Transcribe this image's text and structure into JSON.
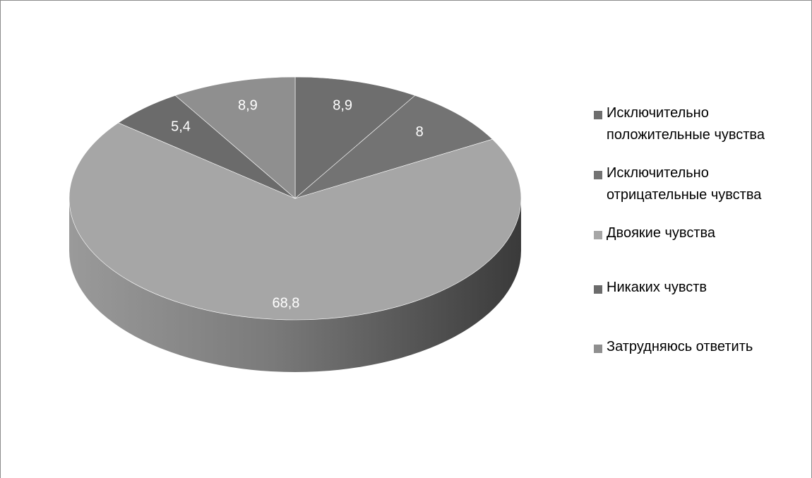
{
  "chart_data": {
    "type": "pie",
    "style": "3d",
    "title": "",
    "legend_position": "right",
    "slices": [
      {
        "name": "Исключительно\nположительные чувства",
        "value": 8.9,
        "label": "8,9",
        "color": "#6e6e6e"
      },
      {
        "name": "Исключительно\nотрицательные чувства",
        "value": 8,
        "label": "8",
        "color": "#737373"
      },
      {
        "name": "Двоякие чувства",
        "value": 68.8,
        "label": "68,8",
        "color": "#a6a6a6"
      },
      {
        "name": "Никаких чувств",
        "value": 5.4,
        "label": "5,4",
        "color": "#6b6b6b"
      },
      {
        "name": "Затрудняюсь ответить",
        "value": 8.9,
        "label": "8,9",
        "color": "#8f8f8f"
      }
    ]
  }
}
